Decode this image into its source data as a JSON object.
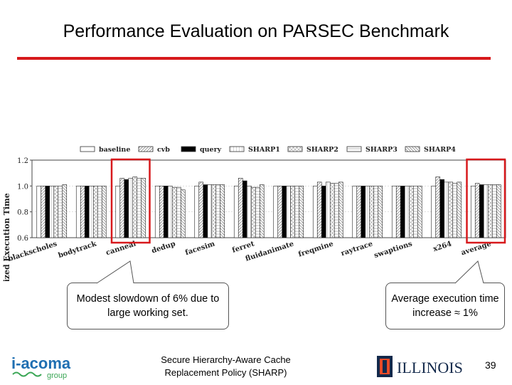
{
  "slide": {
    "title": "Performance Evaluation on PARSEC Benchmark",
    "footer": "Secure Hierarchy-Aware Cache Replacement Policy (SHARP)",
    "page_number": "39",
    "logo_left_text": "i-acoma",
    "logo_left_sub": "group",
    "logo_right_text": "ILLINOIS",
    "accent_color": "#d7191c"
  },
  "callouts": {
    "left": "Modest slowdown of  6% due to large working set.",
    "right": "Average execution time increase ≈ 1%"
  },
  "chart_data": {
    "type": "bar",
    "title": "",
    "xlabel": "",
    "ylabel": "Normalized Execution Time",
    "ylim": [
      0.6,
      1.2
    ],
    "yticks": [
      "0.6",
      "0.8",
      "1.0",
      "1.2"
    ],
    "grid": true,
    "legend_position": "top",
    "highlighted_categories": [
      "canneal",
      "average"
    ],
    "categories": [
      "blackscholes",
      "bodytrack",
      "canneal",
      "dedup",
      "facesim",
      "ferret",
      "fluidanimate",
      "freqmine",
      "raytrace",
      "swaptions",
      "x264",
      "average"
    ],
    "series": [
      {
        "name": "baseline",
        "values": [
          1.0,
          1.0,
          1.0,
          1.0,
          1.0,
          1.0,
          1.0,
          1.0,
          1.0,
          1.0,
          1.0,
          1.0
        ]
      },
      {
        "name": "cvb",
        "values": [
          1.0,
          1.0,
          1.06,
          1.0,
          1.03,
          1.06,
          1.0,
          1.03,
          1.0,
          1.0,
          1.07,
          1.02
        ]
      },
      {
        "name": "query",
        "values": [
          1.0,
          1.0,
          1.05,
          1.0,
          1.01,
          1.04,
          1.0,
          1.0,
          1.0,
          1.0,
          1.05,
          1.01
        ]
      },
      {
        "name": "SHARP1",
        "values": [
          1.0,
          1.0,
          1.06,
          1.0,
          1.01,
          1.0,
          1.0,
          1.03,
          1.0,
          1.0,
          1.03,
          1.01
        ]
      },
      {
        "name": "SHARP2",
        "values": [
          1.0,
          1.0,
          1.07,
          0.99,
          1.01,
          0.99,
          1.0,
          1.02,
          1.0,
          1.0,
          1.03,
          1.01
        ]
      },
      {
        "name": "SHARP3",
        "values": [
          1.0,
          1.0,
          1.06,
          0.99,
          1.01,
          0.99,
          1.0,
          1.02,
          1.0,
          1.0,
          1.02,
          1.01
        ]
      },
      {
        "name": "SHARP4",
        "values": [
          1.01,
          1.0,
          1.06,
          0.97,
          1.01,
          1.01,
          1.0,
          1.03,
          1.0,
          1.0,
          1.03,
          1.01
        ]
      }
    ]
  }
}
